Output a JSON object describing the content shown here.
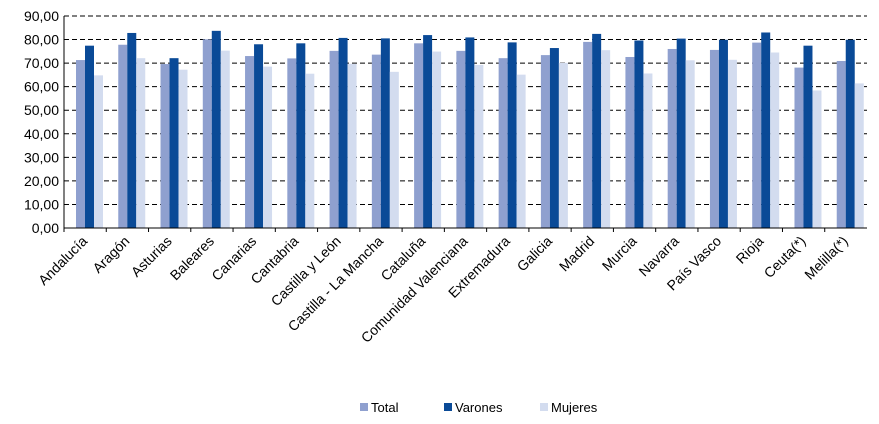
{
  "chart_data": {
    "type": "bar",
    "categories": [
      "Andalucía",
      "Aragón",
      "Asturias",
      "Baleares",
      "Canarias",
      "Cantabria",
      "Castilla y León",
      "Castilla - La Mancha",
      "Cataluña",
      "Comunidad Valenciana",
      "Extremadura",
      "Galicia",
      "Madrid",
      "Murcia",
      "Navarra",
      "País Vasco",
      "Rioja",
      "Ceuta(*)",
      "Melilla(*)"
    ],
    "series": [
      {
        "name": "Total",
        "color": "#8FA0CF",
        "values": [
          71.3,
          77.8,
          69.6,
          80.1,
          73.0,
          72.0,
          75.2,
          73.6,
          78.4,
          75.2,
          72.1,
          73.4,
          79.0,
          72.6,
          76.0,
          75.6,
          78.7,
          68.1,
          70.9
        ]
      },
      {
        "name": "Varones",
        "color": "#0A4A97",
        "values": [
          77.4,
          82.8,
          72.1,
          83.7,
          78.0,
          78.4,
          80.7,
          80.5,
          81.9,
          80.9,
          78.8,
          76.4,
          82.4,
          79.6,
          80.4,
          79.9,
          83.0,
          77.4,
          79.9
        ]
      },
      {
        "name": "Mujeres",
        "color": "#D3DCEF",
        "values": [
          64.8,
          72.1,
          67.2,
          75.3,
          68.5,
          65.5,
          69.7,
          66.3,
          74.9,
          69.2,
          65.1,
          70.1,
          75.5,
          65.6,
          71.2,
          71.4,
          74.5,
          58.4,
          61.4
        ]
      }
    ],
    "ylim": [
      0,
      90
    ],
    "yticks": [
      "0,00",
      "10,00",
      "20,00",
      "30,00",
      "40,00",
      "50,00",
      "60,00",
      "70,00",
      "80,00",
      "90,00"
    ],
    "grid": true,
    "legend_position": "bottom"
  }
}
